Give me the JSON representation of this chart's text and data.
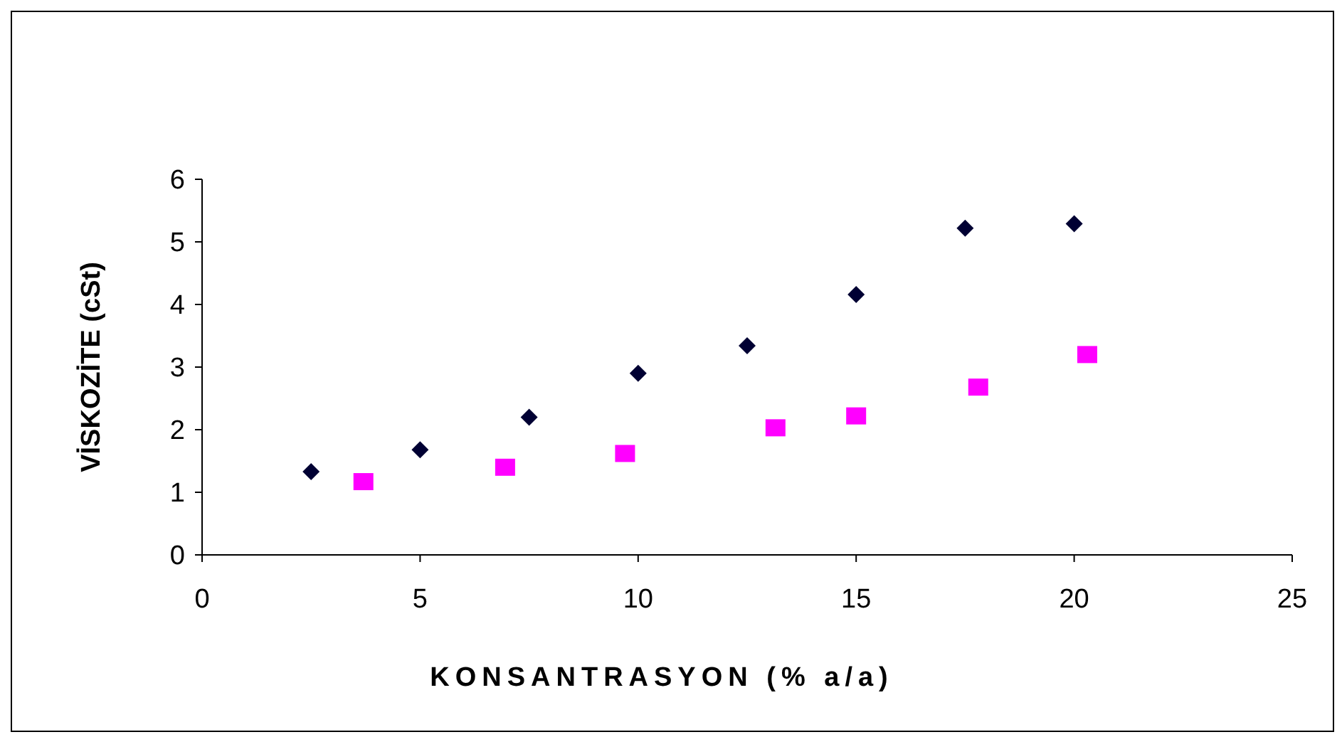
{
  "chart_data": {
    "type": "scatter",
    "xlabel": "KONSANTRASYON (% a/a)",
    "ylabel": "VİSKOZİTE (cSt)",
    "xlim": [
      0,
      25
    ],
    "xticks": [
      0,
      5,
      10,
      15,
      20,
      25
    ],
    "ylim": [
      0,
      6
    ],
    "yticks": [
      0,
      1,
      2,
      3,
      4,
      5,
      6
    ],
    "grid": false,
    "series": [
      {
        "color": "#000033",
        "marker": "diamond",
        "x": [
          2.5,
          5,
          7.5,
          10,
          12.5,
          15,
          17.5,
          20
        ],
        "values": [
          1.33,
          1.68,
          2.2,
          2.9,
          3.34,
          4.16,
          5.22,
          5.29
        ]
      },
      {
        "color": "#ff00ff",
        "marker": "square",
        "x": [
          3.7,
          6.95,
          9.7,
          13.15,
          15,
          17.8,
          20.3
        ],
        "values": [
          1.17,
          1.4,
          1.62,
          2.03,
          2.22,
          2.68,
          3.2
        ]
      }
    ]
  }
}
